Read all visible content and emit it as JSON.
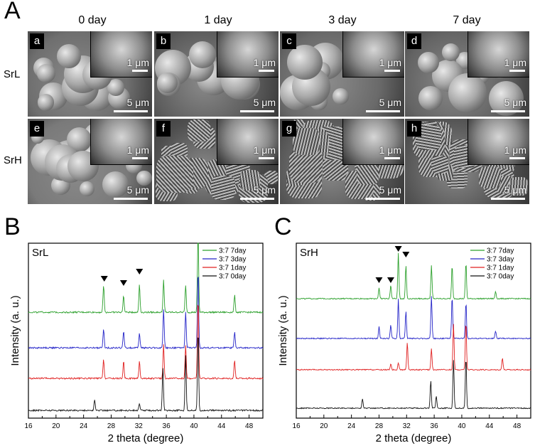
{
  "panel_labels": {
    "A": "A",
    "B": "B",
    "C": "C"
  },
  "sem_grid": {
    "columns": [
      "0 day",
      "1 day",
      "3 day",
      "7 day"
    ],
    "rows": [
      "SrL",
      "SrH"
    ],
    "tiles": [
      {
        "letter": "a",
        "inset_scale": "1 μm",
        "main_scale": "5 μm"
      },
      {
        "letter": "b",
        "inset_scale": "1 μm",
        "main_scale": "5 μm"
      },
      {
        "letter": "c",
        "inset_scale": "1 μm",
        "main_scale": "5 μm"
      },
      {
        "letter": "d",
        "inset_scale": "1 μm",
        "main_scale": "5 μm"
      },
      {
        "letter": "e",
        "inset_scale": "1 μm",
        "main_scale": "5 μm"
      },
      {
        "letter": "f",
        "inset_scale": "1 μm",
        "main_scale": "5 μm"
      },
      {
        "letter": "g",
        "inset_scale": "1 μm",
        "main_scale": "5 μm"
      },
      {
        "letter": "h",
        "inset_scale": "1 μm",
        "main_scale": "5 μm"
      }
    ]
  },
  "chart_data": [
    {
      "type": "line",
      "title": "SrL",
      "xlabel": "2 theta (degree)",
      "ylabel": "Intensity (a. u.)",
      "xlim": [
        16,
        50
      ],
      "xticks": [
        "16",
        "20",
        "24",
        "28",
        "32",
        "36",
        "40",
        "44",
        "48"
      ],
      "legend_position": "top-right",
      "markers_at_x": [
        27.0,
        29.8,
        32.1
      ],
      "series": [
        {
          "name": "3:7 7day",
          "color": "#2ca02c",
          "peaks": [
            [
              26.9,
              0.32
            ],
            [
              29.8,
              0.2
            ],
            [
              32.1,
              0.33
            ],
            [
              35.6,
              0.38
            ],
            [
              38.8,
              0.32
            ],
            [
              40.6,
              1.0
            ],
            [
              45.9,
              0.2
            ]
          ]
        },
        {
          "name": "3:7 3day",
          "color": "#2424c8",
          "peaks": [
            [
              26.9,
              0.22
            ],
            [
              29.8,
              0.2
            ],
            [
              32.1,
              0.18
            ],
            [
              35.6,
              0.45
            ],
            [
              38.8,
              0.42
            ],
            [
              40.6,
              0.92
            ],
            [
              45.9,
              0.18
            ]
          ]
        },
        {
          "name": "3:7 1day",
          "color": "#e02020",
          "peaks": [
            [
              26.9,
              0.22
            ],
            [
              29.8,
              0.2
            ],
            [
              32.1,
              0.2
            ],
            [
              35.6,
              0.4
            ],
            [
              38.8,
              0.38
            ],
            [
              40.6,
              0.95
            ],
            [
              45.9,
              0.22
            ]
          ]
        },
        {
          "name": "3:7 0day",
          "color": "#111111",
          "peaks": [
            [
              25.6,
              0.12
            ],
            [
              32.1,
              0.08
            ],
            [
              35.5,
              0.5
            ],
            [
              38.8,
              0.65
            ],
            [
              40.6,
              0.95
            ]
          ]
        }
      ]
    },
    {
      "type": "line",
      "title": "SrH",
      "xlabel": "2 theta (degree)",
      "ylabel": "Intensity (a. u.)",
      "xlim": [
        16,
        50
      ],
      "xticks": [
        "16",
        "20",
        "24",
        "28",
        "32",
        "36",
        "40",
        "44",
        "48"
      ],
      "legend_position": "top-right",
      "markers_at_x": [
        28.0,
        29.7,
        30.8,
        31.9
      ],
      "series": [
        {
          "name": "3:7 7day",
          "color": "#2ca02c",
          "peaks": [
            [
              28.0,
              0.18
            ],
            [
              29.7,
              0.22
            ],
            [
              30.8,
              0.75
            ],
            [
              31.9,
              0.55
            ],
            [
              35.6,
              0.55
            ],
            [
              38.6,
              0.55
            ],
            [
              40.6,
              0.6
            ],
            [
              44.9,
              0.12
            ]
          ]
        },
        {
          "name": "3:7 3day",
          "color": "#2424c8",
          "peaks": [
            [
              28.0,
              0.2
            ],
            [
              29.7,
              0.22
            ],
            [
              30.8,
              0.65
            ],
            [
              31.9,
              0.45
            ],
            [
              35.6,
              0.7
            ],
            [
              38.6,
              0.7
            ],
            [
              40.6,
              0.6
            ],
            [
              44.9,
              0.12
            ]
          ]
        },
        {
          "name": "3:7 1day",
          "color": "#e02020",
          "peaks": [
            [
              29.7,
              0.1
            ],
            [
              30.8,
              0.12
            ],
            [
              32.1,
              0.45
            ],
            [
              35.6,
              0.35
            ],
            [
              38.8,
              0.75
            ],
            [
              40.6,
              0.8
            ],
            [
              45.9,
              0.2
            ]
          ]
        },
        {
          "name": "3:7 0day",
          "color": "#111111",
          "peaks": [
            [
              25.6,
              0.15
            ],
            [
              35.5,
              0.45
            ],
            [
              36.3,
              0.2
            ],
            [
              38.8,
              0.8
            ],
            [
              40.6,
              0.85
            ]
          ]
        }
      ]
    }
  ]
}
